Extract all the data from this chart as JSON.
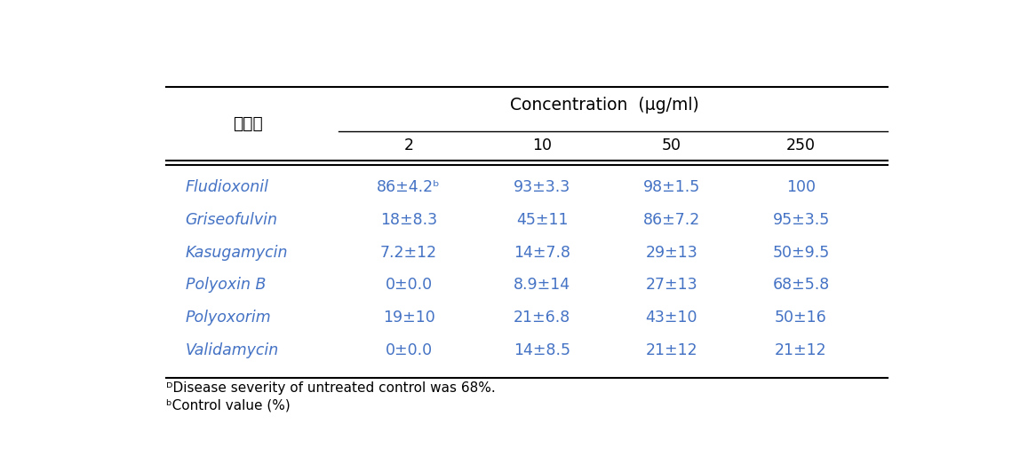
{
  "title_korean": "화합물",
  "concentration_header": "Concentration  (μg/ml)",
  "conc_levels": [
    "2",
    "10",
    "50",
    "250"
  ],
  "compounds": [
    "Fludioxonil",
    "Griseofulvin",
    "Kasugamycin",
    "Polyoxin B",
    "Polyoxorim",
    "Validamycin"
  ],
  "data": [
    [
      "86±4.2ᵇ",
      "93±3.3",
      "98±1.5",
      "100"
    ],
    [
      "18±8.3",
      "45±11",
      "86±7.2",
      "95±3.5"
    ],
    [
      "7.2±12",
      "14±7.8",
      "29±13",
      "50±9.5"
    ],
    [
      "0±0.0",
      "8.9±14",
      "27±13",
      "68±5.8"
    ],
    [
      "19±10",
      "21±6.8",
      "43±10",
      "50±16"
    ],
    [
      "0±0.0",
      "14±8.5",
      "21±12",
      "21±12"
    ]
  ],
  "footnote_a": "ᴰDisease severity of untreated control was 68%.",
  "footnote_b": "ᵇControl value (%)",
  "text_color": "#4472c4",
  "header_color": "#000000",
  "line_color": "#000000",
  "bg_color": "#ffffff",
  "font_size": 12.5
}
